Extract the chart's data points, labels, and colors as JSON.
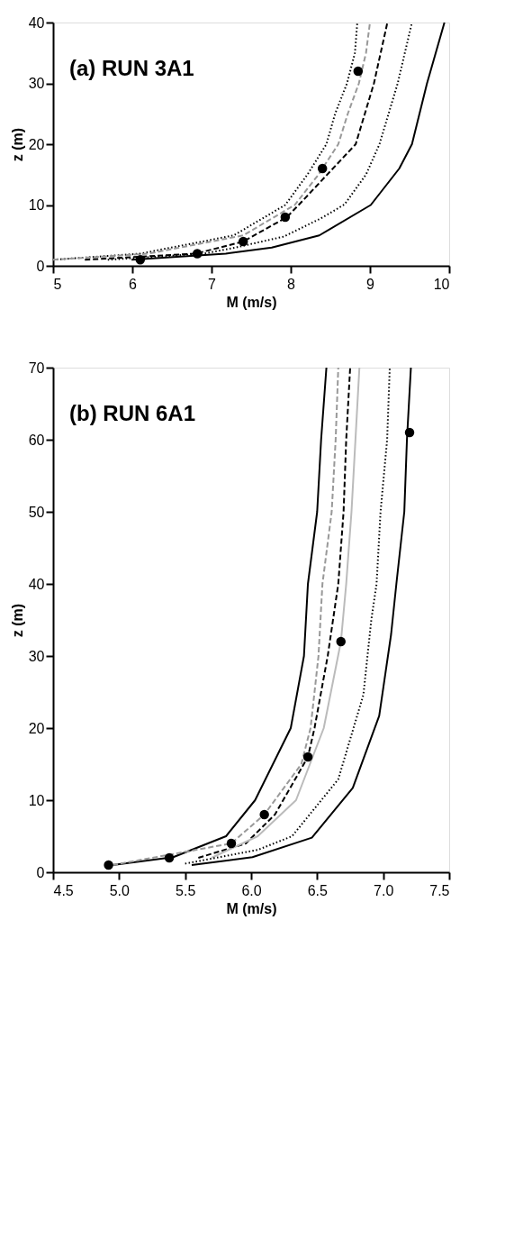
{
  "chart_data": [
    {
      "type": "line",
      "xlabel": "M (m/s)",
      "ylabel": "z (m)",
      "annotations": [
        "(a) RUN 3A1"
      ],
      "xlim": [
        5,
        10
      ],
      "ylim": [
        0,
        40
      ],
      "xticks": [
        5,
        6,
        7,
        8,
        9,
        10
      ],
      "yticks": [
        0,
        10,
        20,
        30,
        40
      ],
      "grid": false,
      "series": [
        {
          "color": "#000000",
          "line_style": "dotted",
          "x": [
            5.0,
            6.1,
            7.28,
            7.93,
            8.21,
            8.45,
            8.56,
            8.71,
            8.81,
            8.84
          ],
          "values": [
            1,
            2,
            5,
            10,
            15,
            20,
            25,
            30,
            35,
            40
          ]
        },
        {
          "color": "#999999",
          "line_style": "dashed",
          "x": [
            5.0,
            6.2,
            7.4,
            8.05,
            8.35,
            8.6,
            8.72,
            8.86,
            8.95,
            9.0
          ],
          "values": [
            1,
            2,
            5,
            10,
            15,
            20,
            25,
            30,
            35,
            40
          ]
        },
        {
          "color": "#000000",
          "line_style": "dashed",
          "x": [
            5.4,
            6.8,
            7.4,
            7.95,
            8.1,
            8.82,
            9.05,
            9.22
          ],
          "values": [
            1,
            2,
            4,
            8,
            10,
            20,
            30,
            40
          ]
        },
        {
          "color": "#000000",
          "line_style": "dotted",
          "x": [
            5.69,
            6.9,
            7.3,
            7.91,
            8.38,
            8.68,
            8.95,
            9.12,
            9.35,
            9.53
          ],
          "values": [
            1,
            2,
            3,
            4.8,
            7.8,
            10.1,
            15,
            20,
            30,
            40
          ]
        },
        {
          "color": "#000000",
          "line_style": "solid",
          "x": [
            5.99,
            7.18,
            7.76,
            8.36,
            9.01,
            9.37,
            9.53,
            9.72,
            9.94
          ],
          "values": [
            1,
            2,
            3,
            5,
            10,
            16,
            20,
            30,
            40
          ]
        },
        {
          "type": "scatter",
          "marker": "circle",
          "color": "#000000",
          "x": [
            6.1,
            6.82,
            7.4,
            7.93,
            8.4,
            8.85
          ],
          "values": [
            1,
            2,
            4,
            8,
            16,
            32
          ]
        }
      ]
    },
    {
      "type": "line",
      "xlabel": "M (m/s)",
      "ylabel": "z (m)",
      "annotations": [
        "(b) RUN 6A1"
      ],
      "xlim": [
        4.5,
        7.5
      ],
      "ylim": [
        0,
        70
      ],
      "xticks": [
        4.5,
        {
          "value": 5,
          "label": "5.0"
        },
        5.5,
        {
          "value": 6,
          "label": "6.0"
        },
        6.5,
        {
          "value": 7,
          "label": "7.0"
        },
        7.5
      ],
      "yticks": [
        0,
        10,
        20,
        30,
        40,
        50,
        60,
        70
      ],
      "grid": false,
      "series": [
        {
          "color": "#000000",
          "line_style": "solid",
          "x": [
            4.95,
            5.41,
            5.81,
            6.03,
            6.3,
            6.4,
            6.43,
            6.5,
            6.53,
            6.57
          ],
          "values": [
            1,
            2.1,
            5,
            10,
            20,
            30,
            40,
            50,
            60,
            70
          ]
        },
        {
          "color": "#999999",
          "line_style": "dashed",
          "x": [
            4.95,
            5.85,
            6.1,
            6.38,
            6.45,
            6.51,
            6.54,
            6.61,
            6.64,
            6.66
          ],
          "values": [
            1,
            4,
            8,
            15,
            20,
            30,
            40,
            50,
            60,
            70
          ]
        },
        {
          "color": "#000000",
          "line_style": "dashed",
          "x": [
            5.6,
            5.96,
            6.18,
            6.43,
            6.48,
            6.58,
            6.66,
            6.7,
            6.72,
            6.75
          ],
          "values": [
            2,
            4,
            8,
            16,
            20,
            30,
            40,
            50,
            60,
            70
          ]
        },
        {
          "color": "#bbbbbb",
          "line_style": "solid",
          "x": [
            5.7,
            6.05,
            6.34,
            6.55,
            6.68,
            6.72,
            6.76,
            6.79,
            6.82
          ],
          "values": [
            2,
            5,
            10,
            20,
            32,
            40,
            50,
            60,
            70
          ]
        },
        {
          "color": "#000000",
          "line_style": "dotted",
          "x": [
            5.5,
            6.05,
            6.31,
            6.66,
            6.85,
            6.91,
            6.95,
            6.98,
            7.03,
            7.05
          ],
          "values": [
            1.2,
            3.1,
            5,
            12.9,
            24.6,
            35,
            40,
            50,
            60,
            70
          ]
        },
        {
          "color": "#000000",
          "line_style": "solid",
          "x": [
            5.55,
            6.01,
            6.46,
            6.77,
            6.97,
            7.06,
            7.1,
            7.16,
            7.18,
            7.21
          ],
          "values": [
            1,
            2.1,
            4.8,
            11.7,
            21.7,
            33,
            40,
            50,
            60,
            70
          ]
        },
        {
          "type": "scatter",
          "marker": "circle",
          "color": "#000000",
          "x": [
            4.92,
            5.38,
            5.85,
            6.1,
            6.43,
            6.68,
            7.2
          ],
          "values": [
            1,
            2,
            4,
            8,
            16,
            32,
            61
          ]
        }
      ]
    }
  ]
}
